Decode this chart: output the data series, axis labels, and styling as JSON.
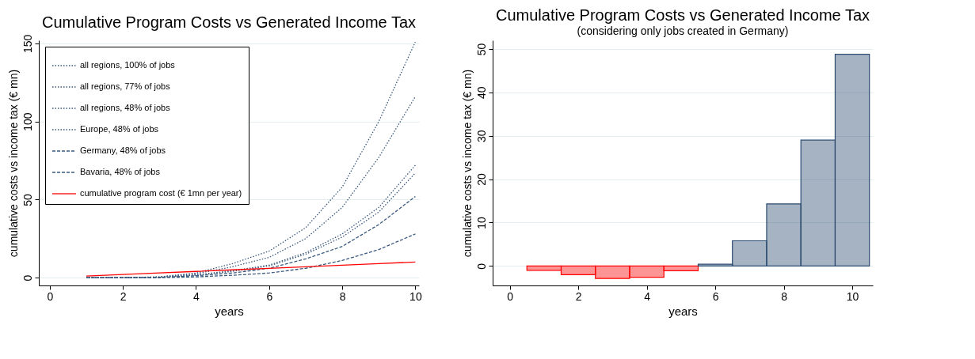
{
  "chart_data": [
    {
      "type": "line",
      "title": "Cumulative Program Costs vs Generated Income Tax",
      "xlabel": "years",
      "ylabel": "cumulative costs vs income tax (€ mn)",
      "x": [
        1,
        2,
        3,
        4,
        5,
        6,
        7,
        8,
        9,
        10
      ],
      "series": [
        {
          "name": "all regions, 100% of jobs",
          "color": "#3b5a7e",
          "line_style": "dotted",
          "values": [
            0,
            0,
            0.5,
            3,
            9,
            17,
            32,
            58,
            100,
            151
          ]
        },
        {
          "name": "all regions, 77% of jobs",
          "color": "#3b5a7e",
          "line_style": "dotted",
          "values": [
            0,
            0,
            0.4,
            2.5,
            7,
            13,
            25,
            45,
            77,
            116
          ]
        },
        {
          "name": "all regions, 48% of jobs",
          "color": "#3b5a7e",
          "line_style": "dotted",
          "values": [
            0,
            0,
            0.3,
            1.8,
            4.5,
            8,
            16,
            28,
            45,
            72
          ]
        },
        {
          "name": "Europe, 48% of jobs",
          "color": "#3b5a7e",
          "line_style": "dotted",
          "values": [
            0,
            0,
            0.3,
            1.6,
            4,
            7.5,
            15,
            26,
            42,
            67
          ]
        },
        {
          "name": "Germany, 48% of jobs",
          "color": "#3b5a7e",
          "line_style": "dashed",
          "values": [
            0,
            0,
            0.2,
            1.2,
            3,
            6,
            12,
            20,
            34,
            52
          ]
        },
        {
          "name": "Bavaria, 48% of jobs",
          "color": "#3b5a7e",
          "line_style": "dashed",
          "values": [
            0,
            0,
            0,
            0.5,
            1.5,
            3,
            6,
            11,
            18,
            28
          ]
        },
        {
          "name": "cumulative program cost (€ 1mn per year)",
          "color": "#ff0000",
          "line_style": "solid",
          "values": [
            1,
            2,
            3,
            4,
            5,
            6,
            7,
            8,
            9,
            10
          ]
        }
      ],
      "xlim": [
        -0.3,
        10.1
      ],
      "ylim": [
        -5,
        152
      ],
      "xticks": [
        0,
        2,
        4,
        6,
        8,
        10
      ],
      "yticks": [
        0,
        50,
        100,
        150
      ],
      "grid": "y",
      "legend": "top left"
    },
    {
      "type": "bar",
      "title": "Cumulative Program Costs vs Generated Income Tax",
      "subtitle": "(considering only jobs created in Germany)",
      "xlabel": "years",
      "ylabel": "cumulative costs vs income tax (€ mn)",
      "x": [
        1,
        2,
        3,
        4,
        5,
        6,
        7,
        8,
        9,
        10
      ],
      "values": [
        -1,
        -2,
        -2.9,
        -2.6,
        -1.1,
        0.4,
        5.8,
        14.3,
        29,
        48.8
      ],
      "colors": [
        "#ff0000",
        "#ff0000",
        "#ff0000",
        "#ff0000",
        "#ff0000",
        "#2b4b70",
        "#2b4b70",
        "#2b4b70",
        "#2b4b70",
        "#2b4b70"
      ],
      "xlim": [
        -0.5,
        10.6
      ],
      "ylim": [
        -4.5,
        52
      ],
      "xticks": [
        0,
        2,
        4,
        6,
        8,
        10
      ],
      "yticks": [
        0,
        10,
        20,
        30,
        40,
        50
      ],
      "grid": "y"
    }
  ]
}
